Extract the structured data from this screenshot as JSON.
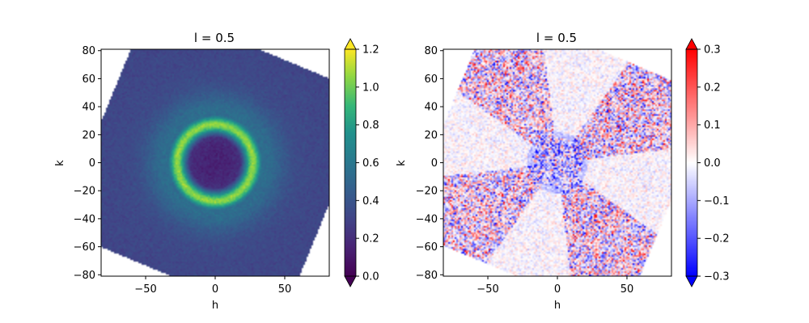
{
  "chart_data": [
    {
      "type": "heatmap",
      "title": "l = 0.5",
      "xlabel": "h",
      "ylabel": "k",
      "xlim": [
        -82,
        82
      ],
      "ylim": [
        -81,
        81
      ],
      "xticks": [
        -50,
        0,
        50
      ],
      "xtick_labels": [
        "−50",
        "0",
        "50"
      ],
      "yticks": [
        80,
        60,
        40,
        20,
        0,
        -20,
        -40,
        -60,
        -80
      ],
      "ytick_labels": [
        "80",
        "60",
        "40",
        "20",
        "0",
        "−20",
        "−40",
        "−60",
        "−80"
      ],
      "colormap": "viridis",
      "colorbar": {
        "min": 0.0,
        "max": 1.2,
        "extend": "both",
        "ticks": [
          1.2,
          1.0,
          0.8,
          0.6,
          0.4,
          0.2,
          0.0
        ],
        "tick_labels": [
          "1.2",
          "1.0",
          "0.8",
          "0.6",
          "0.4",
          "0.2",
          "0.0"
        ]
      },
      "features": {
        "center_value": 0.15,
        "ring_radius": 27,
        "ring_peak_value": 0.95,
        "background_value": 0.38,
        "outer_value": 0.3
      }
    },
    {
      "type": "heatmap",
      "title": "l = 0.5",
      "xlabel": "h",
      "ylabel": "k",
      "xlim": [
        -82,
        82
      ],
      "ylim": [
        -81,
        81
      ],
      "xticks": [
        -50,
        0,
        50
      ],
      "xtick_labels": [
        "−50",
        "0",
        "50"
      ],
      "yticks": [
        80,
        60,
        40,
        20,
        0,
        -20,
        -40,
        -60,
        -80
      ],
      "ytick_labels": [
        "80",
        "60",
        "40",
        "20",
        "0",
        "−20",
        "−40",
        "−60",
        "−80"
      ],
      "colormap": "bwr",
      "colorbar": {
        "min": -0.3,
        "max": 0.3,
        "extend": "both",
        "ticks": [
          0.3,
          0.2,
          0.1,
          0.0,
          -0.1,
          -0.2,
          -0.3
        ],
        "tick_labels": [
          "0.3",
          "0.2",
          "0.1",
          "0.0",
          "−0.1",
          "−0.2",
          "−0.3"
        ]
      },
      "features": {
        "lobes": 4,
        "lobe_value": 0.0,
        "noise_amplitude": 0.25,
        "center_value": -0.05
      }
    }
  ]
}
